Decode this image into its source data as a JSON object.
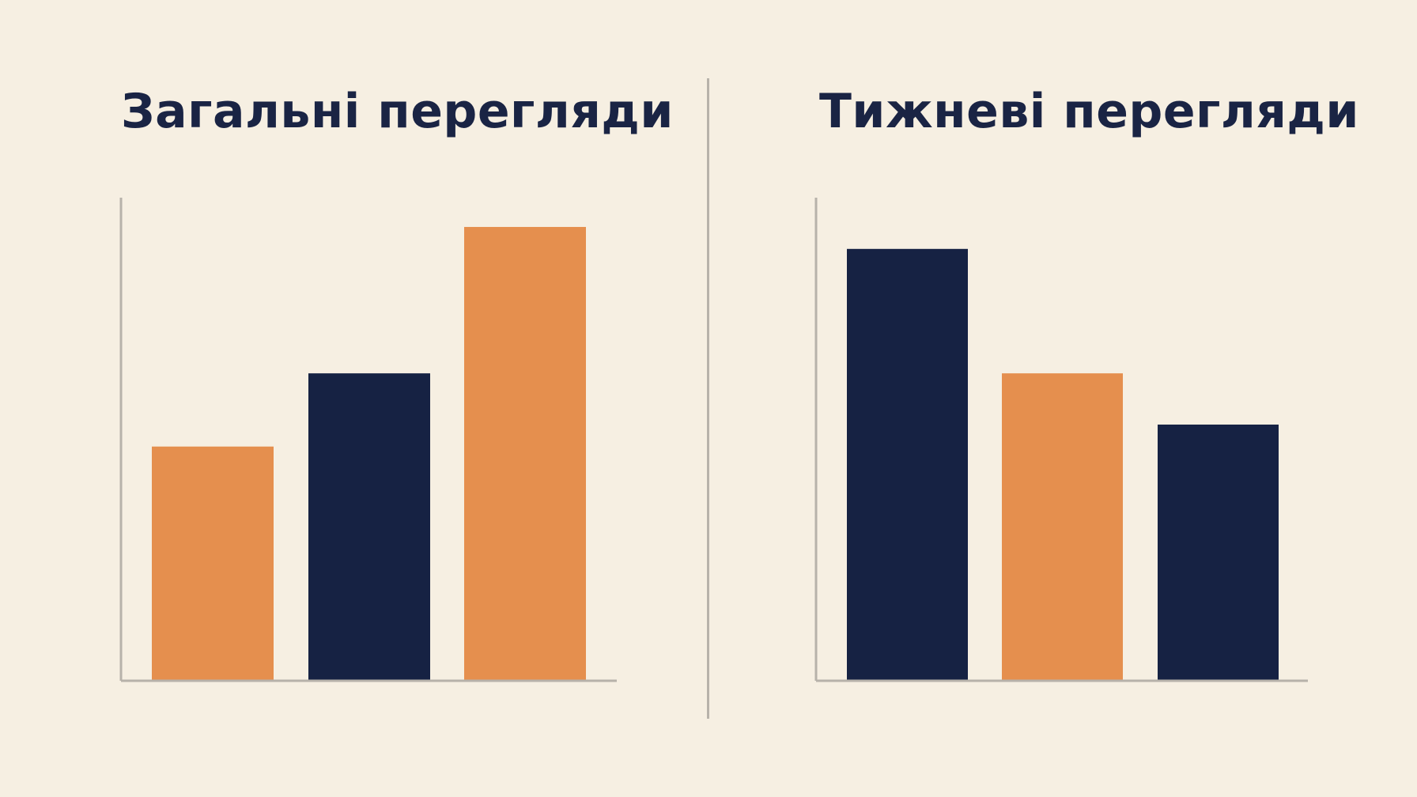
{
  "chart_data": [
    {
      "type": "bar",
      "title": "Загальні перегляди",
      "categories": [
        "",
        "",
        ""
      ],
      "values": [
        32,
        42,
        62
      ],
      "bar_colors": [
        "#E58F4E",
        "#162243",
        "#E58F4E"
      ],
      "ylim": [
        0,
        66
      ],
      "xlabel": "",
      "ylabel": "",
      "grid": false,
      "axis_color": "#B7B2AA"
    },
    {
      "type": "bar",
      "title": "Тижневі перегляди",
      "categories": [
        "",
        "",
        ""
      ],
      "values": [
        59,
        42,
        35
      ],
      "bar_colors": [
        "#162243",
        "#E58F4E",
        "#162243"
      ],
      "ylim": [
        0,
        66
      ],
      "xlabel": "",
      "ylabel": "",
      "grid": false,
      "axis_color": "#B7B2AA"
    }
  ],
  "colors": {
    "background": "#F6EFE2",
    "title": "#1A2444",
    "divider": "#B7B2AA"
  }
}
